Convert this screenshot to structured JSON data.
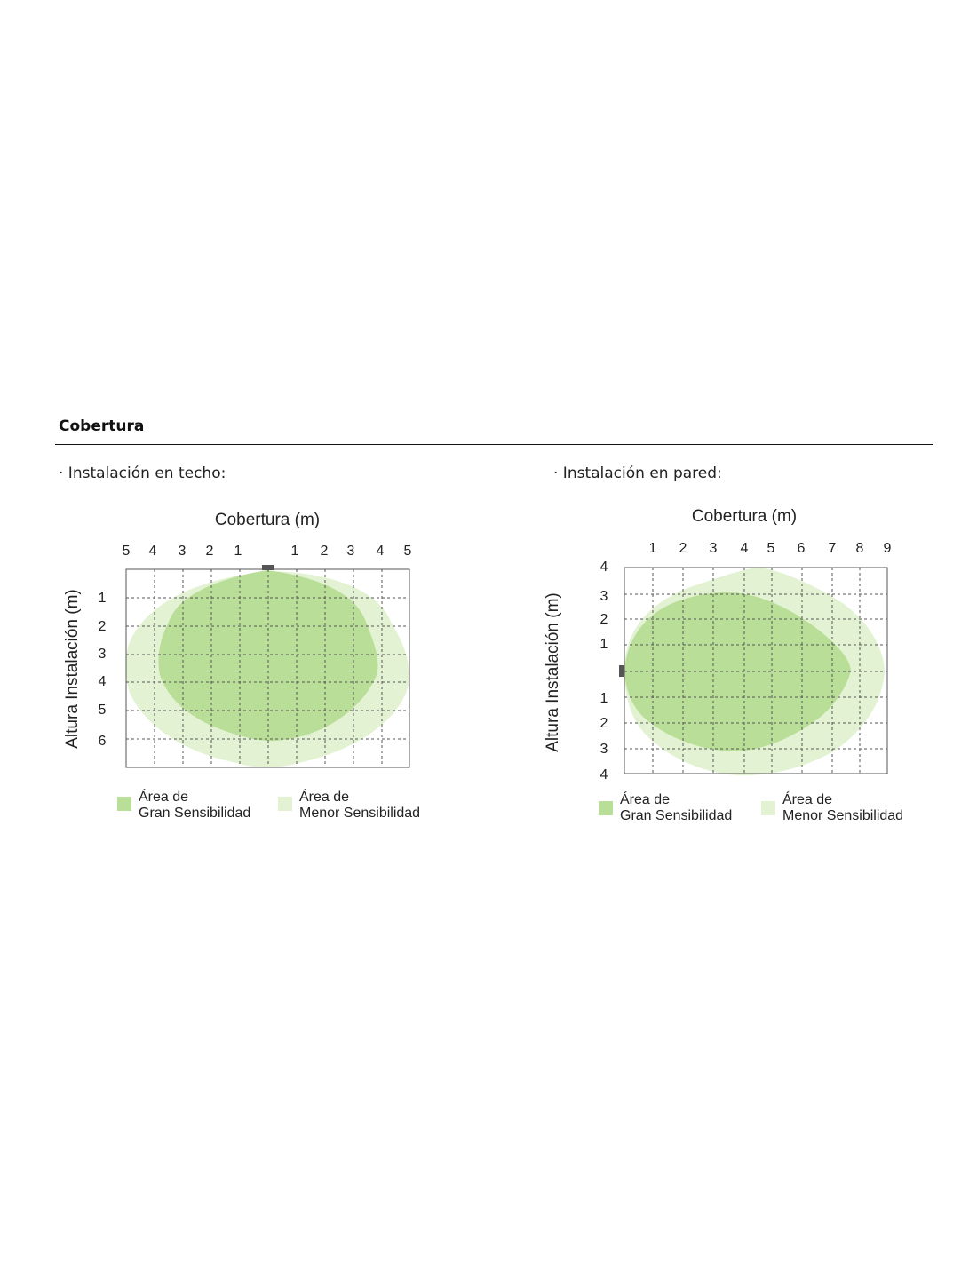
{
  "section": {
    "title": "Cobertura"
  },
  "diagrams": {
    "ceiling": {
      "subtitle": "· Instalación en techo:",
      "title": "Cobertura (m)",
      "ylabel": "Altura Instalación (m)",
      "top_ticks": [
        "5",
        "4",
        "3",
        "2",
        "1",
        "1",
        "2",
        "3",
        "4",
        "5"
      ],
      "left_ticks": [
        "1",
        "2",
        "3",
        "4",
        "5",
        "6"
      ],
      "legend": {
        "high_line1": "Área de",
        "high_line2": "Gran Sensibilidad",
        "low_line1": "Área de",
        "low_line2": "Menor Sensibilidad"
      }
    },
    "wall": {
      "subtitle": "· Instalación en pared:",
      "title": "Cobertura (m)",
      "ylabel": "Altura Instalación (m)",
      "top_ticks": [
        "1",
        "2",
        "3",
        "4",
        "5",
        "6",
        "7",
        "8",
        "9"
      ],
      "left_ticks": [
        "4",
        "3",
        "2",
        "1",
        "1",
        "2",
        "3",
        "4"
      ],
      "legend": {
        "high_line1": "Área de",
        "high_line2": "Gran Sensibilidad",
        "low_line1": "Área de",
        "low_line2": "Menor Sensibilidad"
      }
    }
  },
  "colors": {
    "high_sensitivity": "#b9de98",
    "low_sensitivity": "#e2f2d2",
    "grid": "#555555",
    "sensor": "#555555"
  }
}
